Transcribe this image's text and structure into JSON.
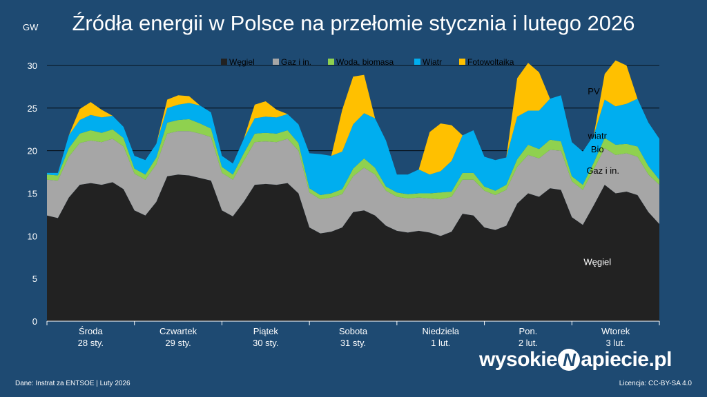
{
  "title": "Źródła energii w Polsce na przełomie stycznia i lutego 2026",
  "unit": "GW",
  "footer_source": "Dane: Instrat za ENTSOE  |  Luty 2026",
  "footer_license": "Licencja: CC-BY-SA 4.0",
  "logo": {
    "part1": "wysokie",
    "mark": "N",
    "part2": "apiecie.pl"
  },
  "colors": {
    "coal": "#222222",
    "gas": "#a6a6a6",
    "bio": "#8fd14f",
    "wind": "#00aeef",
    "pv": "#ffc000",
    "background": "#1e4a72"
  },
  "chart_data": {
    "type": "area",
    "stacked": true,
    "ylim": [
      0,
      30
    ],
    "yticks": [
      0,
      5,
      10,
      15,
      20,
      25,
      30
    ],
    "grid": true,
    "legend_placement": "top",
    "days": [
      {
        "day": "Środa",
        "date": "28 sty."
      },
      {
        "day": "Czwartek",
        "date": "29 sty."
      },
      {
        "day": "Piątek",
        "date": "30 sty."
      },
      {
        "day": "Sobota",
        "date": "31 sty."
      },
      {
        "day": "Niedziela",
        "date": "1 lut."
      },
      {
        "day": "Pon.",
        "date": "2 lut."
      },
      {
        "day": "Wtorek",
        "date": "3 lut."
      }
    ],
    "hours": [
      0,
      3,
      6,
      9,
      12,
      15,
      18,
      21,
      24,
      27,
      30,
      33,
      36,
      39,
      42,
      45,
      48,
      51,
      54,
      57,
      60,
      63,
      66,
      69,
      72,
      75,
      78,
      81,
      84,
      87,
      90,
      93,
      96,
      99,
      102,
      105,
      108,
      111,
      114,
      117,
      120,
      123,
      126,
      129,
      132,
      135,
      138,
      141,
      144,
      147,
      150,
      153,
      156,
      159,
      162,
      165,
      168
    ],
    "series": [
      {
        "name": "Węgiel",
        "values": [
          12.4,
          12.1,
          14.5,
          16.0,
          16.2,
          16.0,
          16.3,
          15.5,
          13.0,
          12.4,
          14.0,
          17.0,
          17.2,
          17.1,
          16.8,
          16.5,
          13.0,
          12.3,
          14.0,
          16.0,
          16.1,
          16.0,
          16.2,
          15.0,
          11.0,
          10.3,
          10.5,
          11.0,
          12.8,
          13.0,
          12.4,
          11.2,
          10.6,
          10.4,
          10.6,
          10.4,
          10.0,
          10.5,
          12.6,
          12.4,
          11.0,
          10.7,
          11.2,
          13.8,
          15.0,
          14.6,
          15.6,
          15.4,
          12.2,
          11.3,
          13.6,
          16.0,
          15.0,
          15.2,
          14.8,
          12.8,
          11.4
        ]
      },
      {
        "name": "Gaz i in.",
        "values": [
          4.2,
          4.4,
          4.8,
          4.9,
          5.0,
          5.0,
          5.1,
          5.0,
          4.3,
          4.2,
          4.4,
          5.0,
          5.1,
          5.2,
          5.2,
          5.1,
          4.4,
          4.3,
          4.8,
          5.0,
          5.0,
          5.0,
          5.2,
          5.0,
          4.1,
          4.0,
          4.0,
          3.9,
          4.2,
          5.0,
          4.8,
          4.1,
          4.0,
          4.0,
          3.9,
          4.0,
          4.3,
          4.1,
          4.0,
          4.2,
          4.3,
          4.1,
          4.2,
          4.3,
          4.5,
          4.5,
          4.5,
          4.6,
          4.2,
          4.1,
          4.2,
          4.3,
          4.5,
          4.5,
          4.5,
          4.4,
          4.6
        ]
      },
      {
        "name": "Woda, biomasa",
        "values": [
          0.6,
          0.6,
          1.0,
          1.1,
          1.2,
          1.1,
          1.1,
          1.0,
          0.6,
          0.6,
          0.8,
          1.3,
          1.3,
          1.4,
          1.2,
          1.0,
          0.7,
          0.6,
          0.9,
          1.0,
          1.0,
          1.0,
          1.0,
          0.9,
          0.5,
          0.5,
          0.5,
          0.6,
          0.9,
          1.1,
          0.8,
          0.5,
          0.5,
          0.5,
          0.5,
          0.6,
          0.8,
          0.6,
          0.8,
          0.8,
          0.5,
          0.5,
          0.6,
          0.9,
          1.2,
          1.1,
          1.2,
          1.1,
          0.6,
          0.6,
          0.8,
          1.2,
          1.2,
          1.1,
          1.2,
          1.0,
          0.6
        ]
      },
      {
        "name": "Wiatr",
        "values": [
          0.2,
          0.3,
          1.5,
          1.6,
          1.8,
          1.8,
          1.6,
          1.3,
          1.5,
          1.7,
          1.6,
          1.7,
          1.8,
          1.9,
          2.1,
          1.9,
          1.3,
          1.3,
          1.7,
          1.8,
          1.9,
          1.9,
          1.9,
          2.2,
          4.1,
          4.8,
          4.4,
          4.4,
          5.2,
          5.3,
          5.8,
          5.4,
          2.1,
          2.3,
          2.8,
          2.2,
          2.5,
          3.6,
          4.4,
          5.0,
          3.5,
          3.6,
          3.2,
          5.0,
          4.0,
          4.5,
          4.8,
          5.4,
          4.0,
          3.9,
          3.2,
          4.5,
          4.5,
          4.7,
          5.6,
          5.1,
          4.8
        ]
      },
      {
        "name": "Fotowoltaika",
        "values": [
          0,
          0,
          0,
          1.3,
          1.5,
          0.9,
          0,
          0,
          0,
          0,
          0,
          1.0,
          1.1,
          0.8,
          0,
          0,
          0,
          0,
          0,
          1.6,
          1.8,
          0.9,
          0,
          0,
          0,
          0,
          0,
          4.9,
          5.6,
          4.5,
          0,
          0,
          0,
          0,
          0,
          5.0,
          5.6,
          4.2,
          0,
          0,
          0,
          0,
          0,
          4.5,
          5.6,
          4.5,
          0,
          0,
          0,
          0,
          0,
          3.0,
          5.4,
          4.5,
          0,
          0,
          0
        ]
      }
    ],
    "annotations": [
      {
        "text": "PV",
        "x": 150,
        "y": 26.6
      },
      {
        "text": "wiatr",
        "x": 151,
        "y": 21.4
      },
      {
        "text": "Bio",
        "x": 151,
        "y": 19.8
      },
      {
        "text": "Gaz i in.",
        "x": 152.5,
        "y": 17.3
      },
      {
        "text": "Węgiel",
        "x": 151,
        "y": 6.6
      }
    ]
  }
}
